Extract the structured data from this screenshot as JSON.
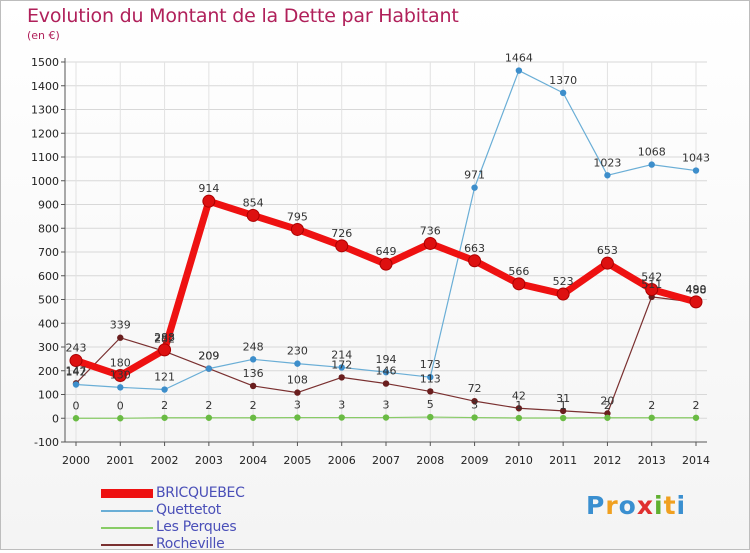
{
  "header": {
    "title": "Evolution du Montant de la Dette par Habitant",
    "unit": "(en €)"
  },
  "logo": {
    "letters": [
      {
        "ch": "P",
        "color": "#3a8fd0"
      },
      {
        "ch": "r",
        "color": "#f0a020"
      },
      {
        "ch": "o",
        "color": "#3a8fd0"
      },
      {
        "ch": "x",
        "color": "#e03030"
      },
      {
        "ch": "i",
        "color": "#60b030"
      },
      {
        "ch": "t",
        "color": "#f0a020"
      },
      {
        "ch": "i",
        "color": "#3a8fd0"
      }
    ]
  },
  "chart_data": {
    "type": "line",
    "title": "Evolution du Montant de la Dette par Habitant",
    "subtitle": "(en €)",
    "x": [
      2000,
      2001,
      2002,
      2003,
      2004,
      2005,
      2006,
      2007,
      2008,
      2009,
      2010,
      2011,
      2012,
      2013,
      2014
    ],
    "ylim": [
      -100,
      1500
    ],
    "yticks": [
      -100,
      0,
      100,
      200,
      300,
      400,
      500,
      600,
      700,
      800,
      900,
      1000,
      1100,
      1200,
      1300,
      1400,
      1500
    ],
    "grid": true,
    "legend_position": "bottom-left",
    "series": [
      {
        "name": "BRICQUEBEC",
        "color": "#ee1111",
        "marker": "#dd1010",
        "width": 7,
        "radius": 6,
        "values": [
          243,
          180,
          288,
          914,
          854,
          795,
          726,
          649,
          736,
          663,
          566,
          523,
          653,
          542,
          490
        ]
      },
      {
        "name": "Quettetot",
        "color": "#6aaed6",
        "marker": "#3d8ecb",
        "width": 1.2,
        "radius": 3.2,
        "values": [
          142,
          130,
          121,
          209,
          248,
          230,
          214,
          194,
          173,
          971,
          1464,
          1370,
          1023,
          1068,
          1043
        ]
      },
      {
        "name": "Les Perques",
        "color": "#88cc66",
        "marker": "#6abb44",
        "width": 1.2,
        "radius": 3.2,
        "values": [
          0,
          0,
          2,
          2,
          2,
          3,
          3,
          3,
          5,
          3,
          1,
          1,
          2,
          2,
          2
        ]
      },
      {
        "name": "Rocheville",
        "color": "#7a3030",
        "marker": "#6a1e1e",
        "width": 1.2,
        "radius": 3.2,
        "values": [
          147,
          339,
          282,
          209,
          136,
          108,
          172,
          146,
          113,
          72,
          42,
          31,
          20,
          511,
          488
        ]
      }
    ]
  }
}
